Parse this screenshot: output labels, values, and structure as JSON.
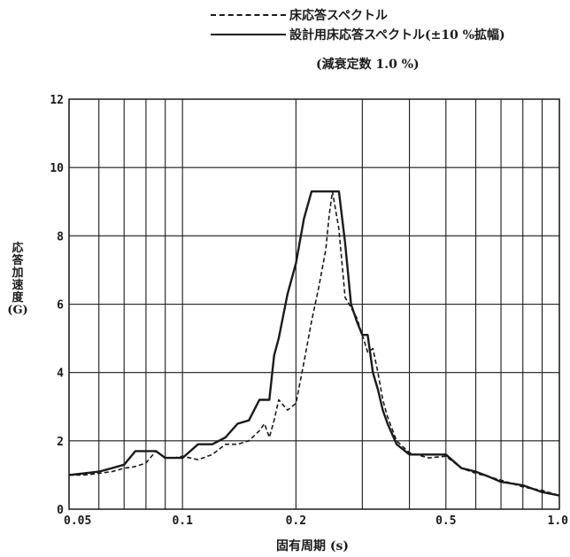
{
  "chart_data": {
    "type": "line",
    "title": "",
    "legend": {
      "placement": "top-right",
      "entries": [
        {
          "series": "floor",
          "label": "床応答スペクトル",
          "style": "dashed"
        },
        {
          "series": "design",
          "label": "設計用床応答スペクトル(±10 %拡幅)",
          "style": "solid"
        }
      ]
    },
    "annotation": "(減衰定数 1.0 %)",
    "xlabel": "固有周期 (s)",
    "ylabel": "応答加速度(G)",
    "xscale": "log",
    "xlim": [
      0.05,
      1.0
    ],
    "ylim": [
      0,
      12
    ],
    "grid": true,
    "x_ticks": [
      0.05,
      0.1,
      0.2,
      0.5,
      1.0
    ],
    "x_tick_labels": [
      "0.05",
      "0.1",
      "0.2",
      "0.5",
      "1.0"
    ],
    "y_ticks": [
      0,
      2,
      4,
      6,
      8,
      10,
      12
    ],
    "y_tick_labels": [
      "0",
      "2",
      "4",
      "6",
      "8",
      "10",
      "12"
    ],
    "series": [
      {
        "name": "床応答スペクトル",
        "style": "dashed",
        "color": "#1a1a1a",
        "x": [
          0.05,
          0.055,
          0.06,
          0.065,
          0.07,
          0.075,
          0.08,
          0.085,
          0.09,
          0.095,
          0.1,
          0.11,
          0.12,
          0.13,
          0.14,
          0.15,
          0.16,
          0.165,
          0.17,
          0.175,
          0.18,
          0.19,
          0.2,
          0.21,
          0.22,
          0.23,
          0.24,
          0.245,
          0.25,
          0.26,
          0.27,
          0.28,
          0.29,
          0.3,
          0.31,
          0.32,
          0.33,
          0.34,
          0.35,
          0.37,
          0.4,
          0.45,
          0.5,
          0.55,
          0.6,
          0.65,
          0.7,
          0.8,
          0.9,
          1.0
        ],
        "y": [
          1.0,
          1.0,
          1.05,
          1.1,
          1.2,
          1.25,
          1.35,
          1.7,
          1.5,
          1.5,
          1.55,
          1.45,
          1.6,
          1.9,
          1.9,
          2.0,
          2.3,
          2.5,
          2.1,
          2.6,
          3.2,
          2.9,
          3.1,
          4.3,
          5.5,
          6.5,
          7.6,
          8.6,
          9.3,
          8.2,
          6.2,
          5.9,
          5.6,
          5.1,
          4.6,
          4.7,
          4.0,
          3.2,
          2.7,
          2.0,
          1.65,
          1.5,
          1.55,
          1.2,
          1.05,
          0.95,
          0.85,
          0.65,
          0.55,
          0.4
        ]
      },
      {
        "name": "設計用床応答スペクトル(±10 %拡幅)",
        "style": "solid",
        "color": "#1a1a1a",
        "x": [
          0.05,
          0.055,
          0.06,
          0.065,
          0.07,
          0.075,
          0.08,
          0.085,
          0.09,
          0.1,
          0.11,
          0.12,
          0.13,
          0.14,
          0.15,
          0.16,
          0.165,
          0.17,
          0.175,
          0.18,
          0.19,
          0.2,
          0.21,
          0.22,
          0.23,
          0.24,
          0.25,
          0.26,
          0.27,
          0.28,
          0.29,
          0.3,
          0.31,
          0.32,
          0.33,
          0.34,
          0.35,
          0.37,
          0.4,
          0.45,
          0.5,
          0.55,
          0.6,
          0.65,
          0.7,
          0.8,
          0.9,
          1.0
        ],
        "y": [
          1.0,
          1.05,
          1.1,
          1.2,
          1.3,
          1.7,
          1.7,
          1.7,
          1.5,
          1.5,
          1.9,
          1.9,
          2.1,
          2.5,
          2.6,
          3.2,
          3.2,
          3.2,
          4.5,
          5.0,
          6.3,
          7.2,
          8.5,
          9.3,
          9.3,
          9.3,
          9.3,
          9.3,
          7.8,
          6.0,
          5.5,
          5.1,
          5.1,
          4.0,
          3.5,
          2.9,
          2.5,
          1.9,
          1.6,
          1.6,
          1.6,
          1.2,
          1.1,
          0.95,
          0.8,
          0.7,
          0.5,
          0.4
        ]
      }
    ]
  }
}
